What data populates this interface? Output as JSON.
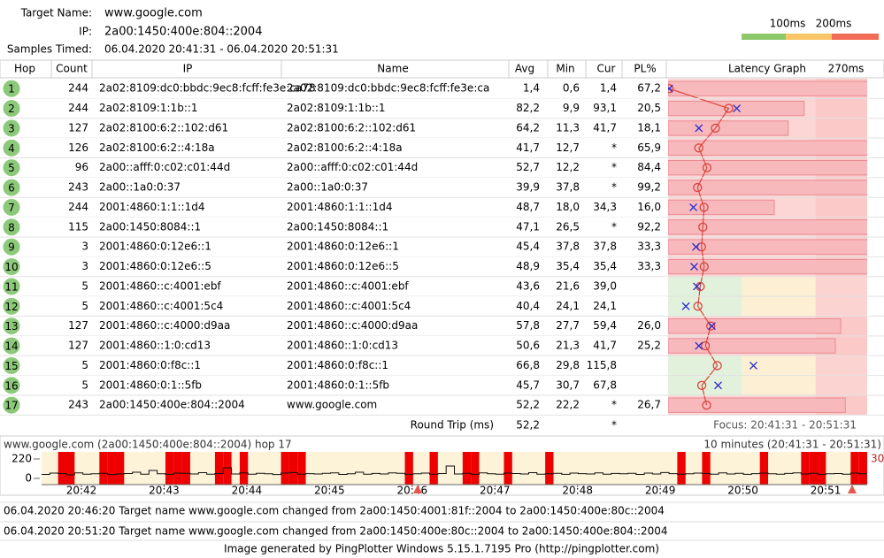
{
  "header": {
    "target_label": "Target Name:",
    "target": "www.google.com",
    "ip_label": "IP:",
    "ip": "2a00:1450:400e:804::2004",
    "samples_label": "Samples Timed:",
    "samples": "06.04.2020 20:41:31 - 06.04.2020 20:51:31"
  },
  "legend": [
    "100ms",
    "200ms"
  ],
  "columns": [
    "Hop",
    "Count",
    "IP",
    "Name",
    "Avg",
    "Min",
    "Cur",
    "PL%"
  ],
  "graph_header": "Latency Graph",
  "graph_max": "270ms",
  "rows": [
    {
      "hop": 1,
      "count": 244,
      "ip": "2a02:8109:dc0:bbdc:9ec8:fcff:fe3e:ca78",
      "name": "2a02:8109:dc0:bbdc:9ec8:fcff:fe3e:ca",
      "avg": "1,4",
      "min": "0,6",
      "cur": "1,4",
      "pl": "67,2"
    },
    {
      "hop": 2,
      "count": 244,
      "ip": "2a02:8109:1:1b::1",
      "name": "2a02:8109:1:1b::1",
      "avg": "82,2",
      "min": "9,9",
      "cur": "93,1",
      "pl": "20,5"
    },
    {
      "hop": 3,
      "count": 127,
      "ip": "2a02:8100:6:2::102:d61",
      "name": "2a02:8100:6:2::102:d61",
      "avg": "64,2",
      "min": "11,3",
      "cur": "41,7",
      "pl": "18,1"
    },
    {
      "hop": 4,
      "count": 126,
      "ip": "2a02:8100:6:2::4:18a",
      "name": "2a02:8100:6:2::4:18a",
      "avg": "41,7",
      "min": "12,7",
      "cur": "*",
      "pl": "65,9"
    },
    {
      "hop": 5,
      "count": 96,
      "ip": "2a00::afff:0:c02:c01:44d",
      "name": "2a00::afff:0:c02:c01:44d",
      "avg": "52,7",
      "min": "12,2",
      "cur": "*",
      "pl": "84,4"
    },
    {
      "hop": 6,
      "count": 243,
      "ip": "2a00::1a0:0:37",
      "name": "2a00::1a0:0:37",
      "avg": "39,9",
      "min": "37,8",
      "cur": "*",
      "pl": "99,2"
    },
    {
      "hop": 7,
      "count": 244,
      "ip": "2001:4860:1:1::1d4",
      "name": "2001:4860:1:1::1d4",
      "avg": "48,7",
      "min": "18,0",
      "cur": "34,3",
      "pl": "16,0"
    },
    {
      "hop": 8,
      "count": 115,
      "ip": "2a00:1450:8084::1",
      "name": "2a00:1450:8084::1",
      "avg": "47,1",
      "min": "26,5",
      "cur": "*",
      "pl": "92,2"
    },
    {
      "hop": 9,
      "count": 3,
      "ip": "2001:4860:0:12e6::1",
      "name": "2001:4860:0:12e6::1",
      "avg": "45,4",
      "min": "37,8",
      "cur": "37,8",
      "pl": "33,3"
    },
    {
      "hop": 10,
      "count": 3,
      "ip": "2001:4860:0:12e6::5",
      "name": "2001:4860:0:12e6::5",
      "avg": "48,9",
      "min": "35,4",
      "cur": "35,4",
      "pl": "33,3"
    },
    {
      "hop": 11,
      "count": 5,
      "ip": "2001:4860::c:4001:ebf",
      "name": "2001:4860::c:4001:ebf",
      "avg": "43,6",
      "min": "21,6",
      "cur": "39,0",
      "pl": null
    },
    {
      "hop": 12,
      "count": 5,
      "ip": "2001:4860::c:4001:5c4",
      "name": "2001:4860::c:4001:5c4",
      "avg": "40,4",
      "min": "24,1",
      "cur": "24,1",
      "pl": null
    },
    {
      "hop": 13,
      "count": 127,
      "ip": "2001:4860::c:4000:d9aa",
      "name": "2001:4860::c:4000:d9aa",
      "avg": "57,8",
      "min": "27,7",
      "cur": "59,4",
      "pl": "26,0"
    },
    {
      "hop": 14,
      "count": 127,
      "ip": "2001:4860::1:0:cd13",
      "name": "2001:4860::1:0:cd13",
      "avg": "50,6",
      "min": "21,3",
      "cur": "41,7",
      "pl": "25,2"
    },
    {
      "hop": 15,
      "count": 5,
      "ip": "2001:4860:0:f8c::1",
      "name": "2001:4860:0:f8c::1",
      "avg": "66,8",
      "min": "29,8",
      "cur": "115,8",
      "pl": null
    },
    {
      "hop": 16,
      "count": 5,
      "ip": "2001:4860:0:1::5fb",
      "name": "2001:4860:0:1::5fb",
      "avg": "45,7",
      "min": "30,7",
      "cur": "67,8",
      "pl": null
    },
    {
      "hop": 17,
      "count": 243,
      "ip": "2a00:1450:400e:804::2004",
      "name": "www.google.com",
      "avg": "52,2",
      "min": "22,2",
      "cur": "*",
      "pl": "26,7"
    }
  ],
  "round_trip": {
    "label": "Round Trip (ms)",
    "avg": "52,2",
    "cur": "*",
    "focus": "Focus: 20:41:31 - 20:51:31"
  },
  "timeline": {
    "title": "www.google.com (2a00:1450:400e:804::2004) hop 17",
    "range": "10 minutes (20:41:31 - 20:51:31)",
    "ylim": [
      0,
      220
    ],
    "yticks": [
      220,
      0
    ],
    "y2lim": [
      0,
      30
    ],
    "y2ticks": [
      30
    ],
    "x_labels": [
      "20:42",
      "20:43",
      "20:44",
      "20:45",
      "20:46",
      "20:47",
      "20:48",
      "20:49",
      "20:50",
      "20:51"
    ],
    "latency": [
      45,
      60,
      55,
      40,
      62,
      48,
      52,
      58,
      44,
      50,
      55,
      70,
      48,
      90,
      52,
      46,
      60,
      58,
      50,
      65,
      48,
      55,
      120,
      50,
      62,
      47,
      58,
      52,
      44,
      60,
      66,
      48,
      54,
      50,
      58,
      62,
      45,
      52,
      70,
      48,
      56,
      50,
      62,
      58,
      46,
      52,
      60,
      48,
      55,
      140,
      50,
      58,
      46,
      62,
      52,
      48,
      60,
      55,
      50,
      65,
      48,
      52,
      58,
      46,
      60,
      54,
      50,
      62,
      48,
      56,
      52,
      58,
      45,
      60,
      50,
      66,
      54,
      48,
      52,
      60,
      55,
      48,
      62,
      50,
      58,
      46,
      54,
      60,
      52,
      48,
      56,
      62,
      50,
      58,
      46,
      52,
      55,
      48,
      60,
      52
    ],
    "loss": [
      0,
      0,
      100,
      100,
      0,
      0,
      0,
      100,
      100,
      100,
      0,
      0,
      0,
      0,
      0,
      100,
      100,
      100,
      0,
      0,
      0,
      100,
      100,
      0,
      100,
      0,
      0,
      0,
      0,
      100,
      100,
      100,
      0,
      0,
      0,
      0,
      0,
      0,
      0,
      0,
      0,
      0,
      0,
      0,
      100,
      0,
      0,
      100,
      0,
      0,
      0,
      100,
      100,
      0,
      0,
      0,
      100,
      0,
      0,
      0,
      0,
      100,
      0,
      0,
      0,
      0,
      0,
      0,
      0,
      0,
      0,
      0,
      0,
      0,
      0,
      0,
      0,
      100,
      0,
      0,
      100,
      0,
      0,
      0,
      0,
      0,
      0,
      100,
      0,
      0,
      0,
      0,
      100,
      100,
      100,
      0,
      0,
      0,
      100,
      100
    ]
  },
  "events": [
    "06.04.2020 20:46:20 Target name www.google.com changed from 2a00:1450:4001:81f::2004 to 2a00:1450:400e:80c::2004",
    "06.04.2020 20:51:20 Target name www.google.com changed from 2a00:1450:400e:80c::2004 to 2a00:1450:400e:804::2004"
  ],
  "footer": "Image generated by PingPlotter Windows 5.15.1.7195 Pro (http://pingplotter.com)"
}
